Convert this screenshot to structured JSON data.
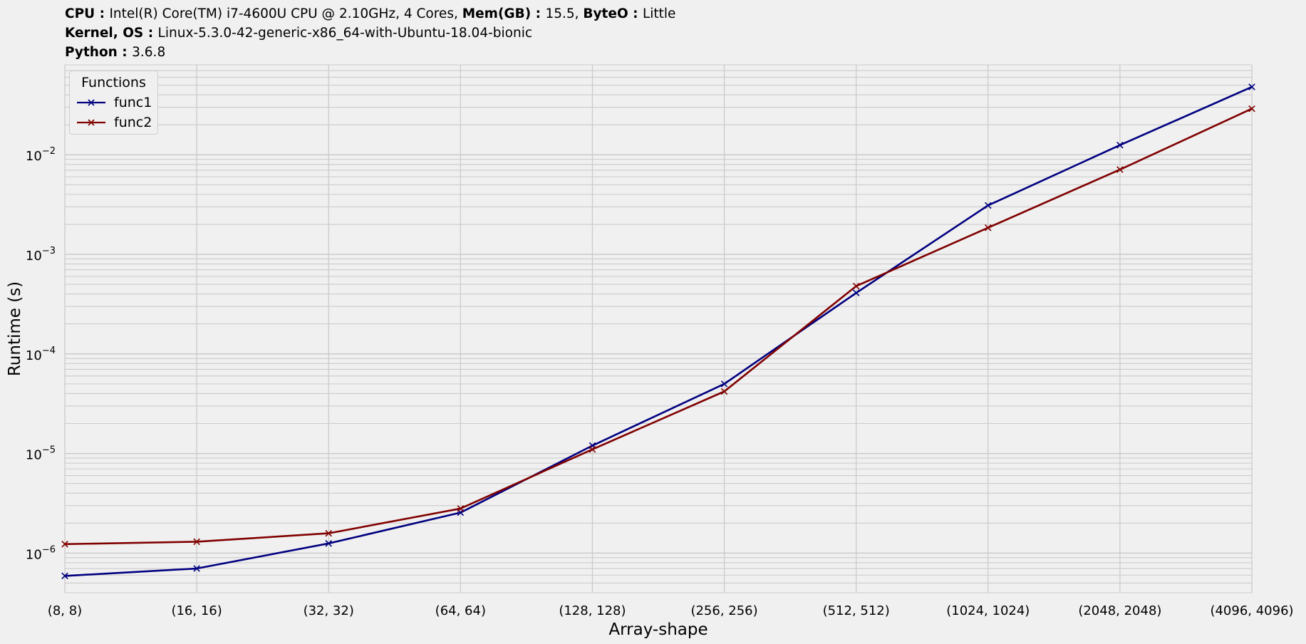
{
  "header": {
    "line1": [
      {
        "key": "CPU",
        "sep": " : ",
        "value": "Intel(R) Core(TM) i7-4600U CPU @ 2.10GHz, 4 Cores, "
      },
      {
        "key": "Mem(GB)",
        "sep": " : ",
        "value": "15.5, "
      },
      {
        "key": "ByteO",
        "sep": " : ",
        "value": "Little"
      }
    ],
    "line2": [
      {
        "key": "Kernel, OS",
        "sep": " : ",
        "value": "Linux-5.3.0-42-generic-x86_64-with-Ubuntu-18.04-bionic"
      }
    ],
    "line3": [
      {
        "key": "Python",
        "sep": " : ",
        "value": "3.6.8"
      }
    ]
  },
  "legend": {
    "title": "Functions",
    "placement": "top-left"
  },
  "chart_data": {
    "type": "line",
    "xlabel": "Array-shape",
    "ylabel": "Runtime (s)",
    "yscale": "log",
    "ylim": [
      4e-07,
      0.08
    ],
    "grid": true,
    "categories": [
      "(8, 8)",
      "(16, 16)",
      "(32, 32)",
      "(64, 64)",
      "(128, 128)",
      "(256, 256)",
      "(512, 512)",
      "(1024, 1024)",
      "(2048, 2048)",
      "(4096, 4096)"
    ],
    "yticks": [
      {
        "value": 1e-06,
        "mant": "10",
        "exp": "−6"
      },
      {
        "value": 1e-05,
        "mant": "10",
        "exp": "−5"
      },
      {
        "value": 0.0001,
        "mant": "10",
        "exp": "−4"
      },
      {
        "value": 0.001,
        "mant": "10",
        "exp": "−3"
      },
      {
        "value": 0.01,
        "mant": "10",
        "exp": "−2"
      }
    ],
    "series": [
      {
        "name": "func1",
        "color": "#000080",
        "marker": "x",
        "values": [
          5.9e-07,
          7e-07,
          1.25e-06,
          2.55e-06,
          1.2e-05,
          5e-05,
          0.00041,
          0.0031,
          0.0125,
          0.048
        ]
      },
      {
        "name": "func2",
        "color": "#800000",
        "marker": "x",
        "values": [
          1.23e-06,
          1.3e-06,
          1.58e-06,
          2.8e-06,
          1.1e-05,
          4.2e-05,
          0.00048,
          0.00185,
          0.0071,
          0.029
        ]
      }
    ]
  }
}
